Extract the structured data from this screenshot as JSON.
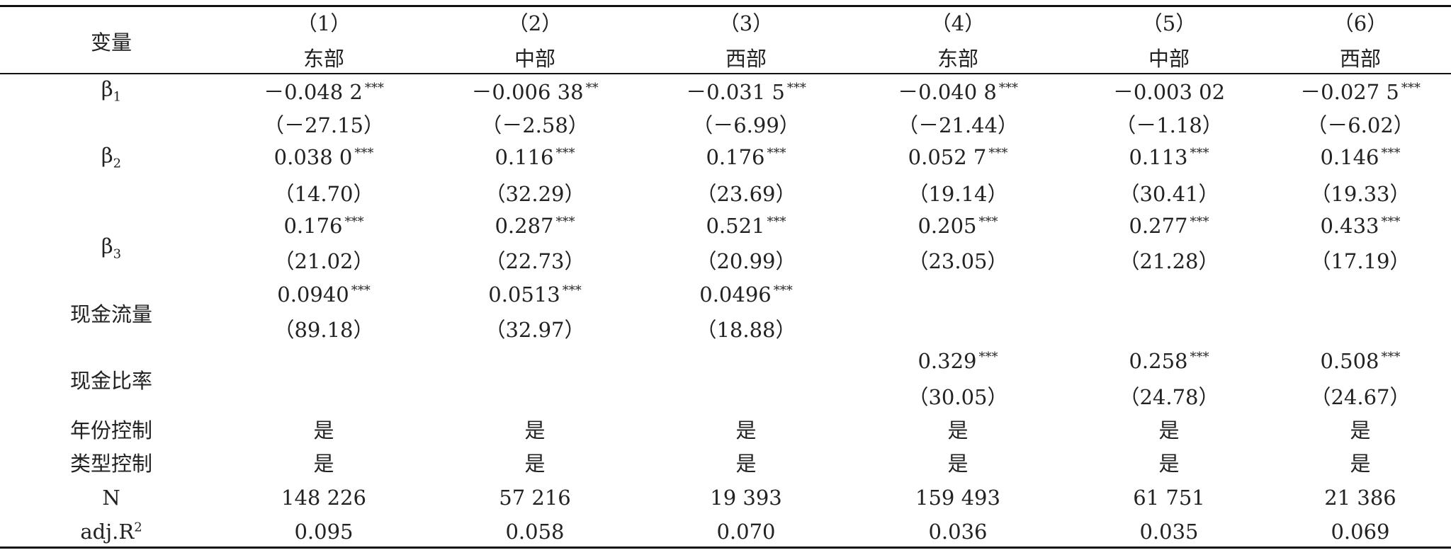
{
  "table": {
    "header": {
      "label": "变量",
      "columns": [
        {
          "number": "（1）",
          "region": "东部"
        },
        {
          "number": "（2）",
          "region": "中部"
        },
        {
          "number": "（3）",
          "region": "西部"
        },
        {
          "number": "（4）",
          "region": "东部"
        },
        {
          "number": "（5）",
          "region": "中部"
        },
        {
          "number": "（6）",
          "region": "西部"
        }
      ]
    },
    "rows": [
      {
        "label": {
          "base": "β",
          "sub": "1"
        },
        "coefficients": [
          {
            "coef": "－0.048 2",
            "stars": "***"
          },
          {
            "coef": "－0.006 38",
            "stars": "**"
          },
          {
            "coef": "－0.031 5",
            "stars": "***"
          },
          {
            "coef": "－0.040 8",
            "stars": "***"
          },
          {
            "coef": "－0.003 02"
          },
          {
            "coef": "－0.027 5",
            "stars": "***"
          }
        ],
        "t_stats": [
          "（－27.15）",
          "（－2.58）",
          "（－6.99）",
          "（－21.44）",
          "（－1.18）",
          "（－6.02）"
        ]
      },
      {
        "label": {
          "base": "β",
          "sub": "2"
        },
        "coefficients": [
          {
            "coef": "0.038 0",
            "stars": "***"
          },
          {
            "coef": "0.116",
            "stars": "***"
          },
          {
            "coef": "0.176",
            "stars": "***"
          },
          {
            "coef": "0.052 7",
            "stars": "***"
          },
          {
            "coef": "0.113",
            "stars": "***"
          },
          {
            "coef": "0.146",
            "stars": "***"
          }
        ],
        "t_stats": [
          "（14.70）",
          "（32.29）",
          "（23.69）",
          "（19.14）",
          "（30.41）",
          "（19.33）"
        ]
      },
      {
        "label": {
          "base": "β",
          "sub": "3"
        },
        "coefficients": [
          {
            "coef": "0.176",
            "stars": "***"
          },
          {
            "coef": "0.287",
            "stars": "***"
          },
          {
            "coef": "0.521",
            "stars": "***"
          },
          {
            "coef": "0.205",
            "stars": "***"
          },
          {
            "coef": "0.277",
            "stars": "***"
          },
          {
            "coef": "0.433",
            "stars": "***"
          }
        ],
        "t_stats": [
          "（21.02）",
          "（22.73）",
          "（20.99）",
          "（23.05）",
          "（21.28）",
          "（17.19）"
        ]
      },
      {
        "label": {
          "base": "现金流量"
        },
        "coefficients": [
          {
            "coef": "0.0940",
            "stars": "***"
          },
          {
            "coef": "0.0513",
            "stars": "***"
          },
          {
            "coef": "0.0496",
            "stars": "***"
          },
          null,
          null,
          null
        ],
        "t_stats": [
          "（89.18）",
          "（32.97）",
          "（18.88）",
          null,
          null,
          null
        ]
      },
      {
        "label": {
          "base": "现金比率"
        },
        "coefficients": [
          null,
          null,
          null,
          {
            "coef": "0.329",
            "stars": "***"
          },
          {
            "coef": "0.258",
            "stars": "***"
          },
          {
            "coef": "0.508",
            "stars": "***"
          }
        ],
        "t_stats": [
          null,
          null,
          null,
          "（30.05）",
          "（24.78）",
          "（24.67）"
        ]
      },
      {
        "label": {
          "base": "年份控制"
        },
        "values": [
          "是",
          "是",
          "是",
          "是",
          "是",
          "是"
        ]
      },
      {
        "label": {
          "base": "类型控制"
        },
        "values": [
          "是",
          "是",
          "是",
          "是",
          "是",
          "是"
        ]
      },
      {
        "label": {
          "base": "N"
        },
        "values": [
          "148 226",
          "57 216",
          "19 393",
          "159 493",
          "61 751",
          "21 386"
        ]
      },
      {
        "label": {
          "base": "adj.R",
          "sup": "2"
        },
        "values": [
          "0.095",
          "0.058",
          "0.070",
          "0.036",
          "0.035",
          "0.069"
        ]
      }
    ]
  }
}
